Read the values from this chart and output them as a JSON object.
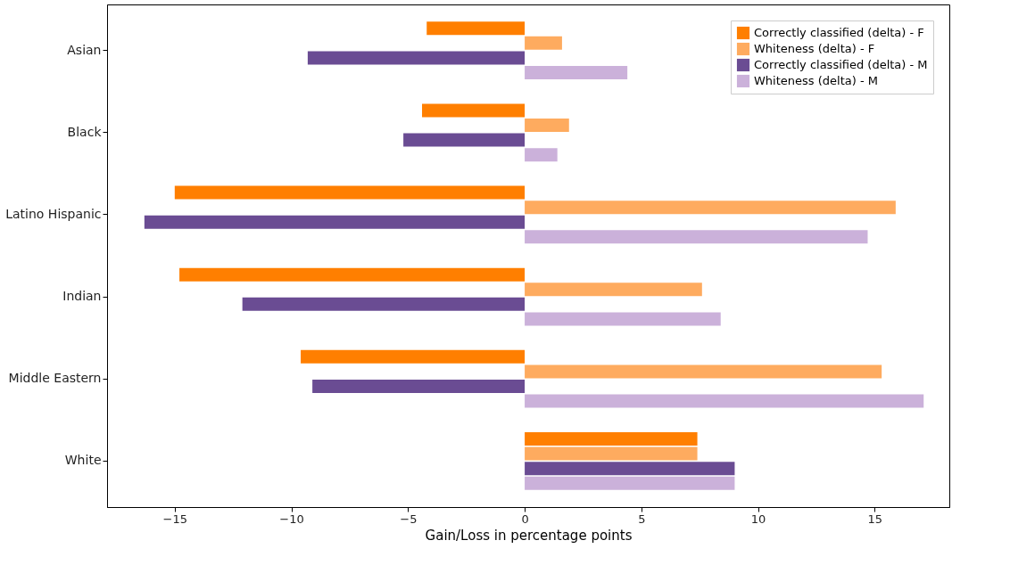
{
  "chart_data": {
    "type": "bar",
    "orientation": "horizontal",
    "xlabel": "Gain/Loss in percentage points",
    "categories": [
      "Asian",
      "Black",
      "Latino Hispanic",
      "Indian",
      "Middle Eastern",
      "White"
    ],
    "series": [
      {
        "name": "Correctly classified (delta) - F",
        "color": "#ff7f00",
        "values": [
          -4.2,
          -4.4,
          -15.0,
          -14.8,
          -9.6,
          7.4
        ]
      },
      {
        "name": "Whiteness (delta) - F",
        "color": "#feab5f",
        "values": [
          1.6,
          1.9,
          15.9,
          7.6,
          15.3,
          7.4
        ]
      },
      {
        "name": "Correctly classified (delta) - M",
        "color": "#6a4c93",
        "values": [
          -9.3,
          -5.2,
          -16.3,
          -12.1,
          -9.1,
          9.0
        ]
      },
      {
        "name": "Whiteness (delta) - M",
        "color": "#cbb1da",
        "values": [
          4.4,
          1.4,
          14.7,
          8.4,
          17.1,
          9.0
        ]
      }
    ],
    "xlim": [
      -17.9,
      18.2
    ],
    "xticks": [
      {
        "value": -15,
        "label": "−15"
      },
      {
        "value": -10,
        "label": "−10"
      },
      {
        "value": -5,
        "label": "−5"
      },
      0,
      5,
      10,
      15
    ],
    "grid": false,
    "legend": "top right"
  }
}
